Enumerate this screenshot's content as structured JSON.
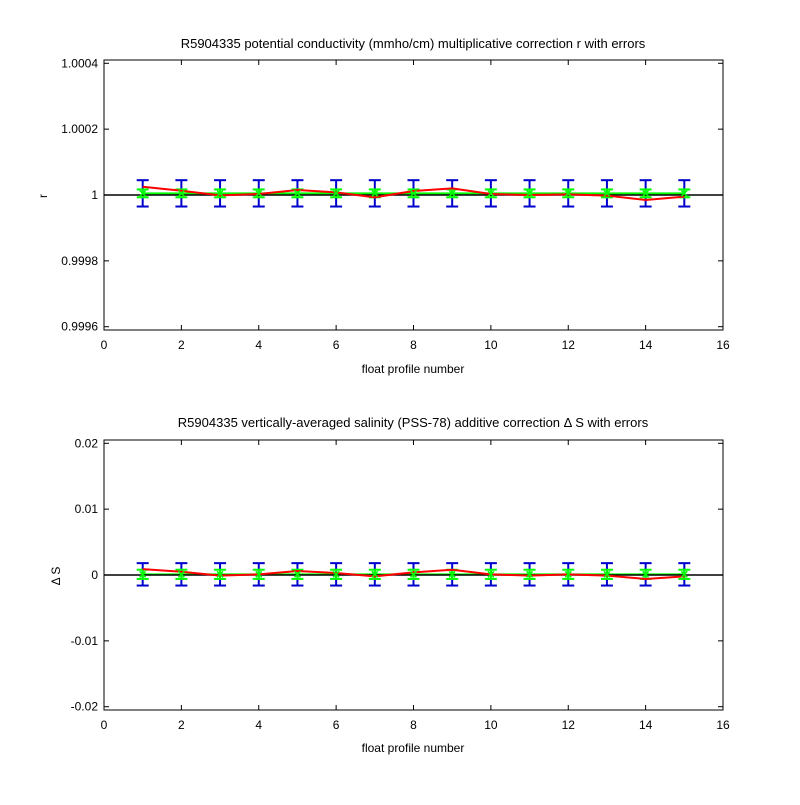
{
  "colors": {
    "axis": "#000000",
    "background": "#ffffff",
    "correction": "#ff0000",
    "zero_line": "#000000",
    "mean_line": "#00ff00",
    "error_bars": "#0000cc",
    "markers": "#00ff00"
  },
  "chart_data": [
    {
      "type": "line",
      "title": "R5904335 potential conductivity (mmho/cm) multiplicative correction r with errors",
      "xlabel": "float profile number",
      "ylabel": "r",
      "xlim": [
        0,
        16
      ],
      "ylim": [
        0.99959,
        1.00041
      ],
      "x_ticks": [
        0,
        2,
        4,
        6,
        8,
        10,
        12,
        14,
        16
      ],
      "x_tick_labels": [
        "0",
        "2",
        "4",
        "6",
        "8",
        "10",
        "12",
        "14",
        "16"
      ],
      "y_ticks": [
        0.9996,
        0.9998,
        1.0,
        1.0002,
        1.0004
      ],
      "y_tick_labels": [
        "0.9996",
        "0.9998",
        "1",
        "1.0002",
        "1.0004"
      ],
      "reference_line": 1.0,
      "x": [
        1,
        2,
        3,
        4,
        5,
        6,
        7,
        8,
        9,
        10,
        11,
        12,
        13,
        14,
        15
      ],
      "series": [
        {
          "role": "correction",
          "values": [
            1.000025,
            1.000013,
            0.999999,
            1.000003,
            1.000015,
            1.000008,
            0.999993,
            1.000012,
            1.00002,
            1.000003,
            1.0,
            1.000002,
            0.999998,
            0.999985,
            0.999995
          ]
        },
        {
          "role": "mean",
          "values": [
            1.000005,
            1.000005,
            1.000005,
            1.000005,
            1.000005,
            1.000005,
            1.000005,
            1.000005,
            1.000005,
            1.000005,
            1.000005,
            1.000005,
            1.000005,
            1.000005,
            1.000005
          ]
        }
      ],
      "errors": {
        "center": [
          1.000005,
          1.000005,
          1.000005,
          1.000005,
          1.000005,
          1.000005,
          1.000005,
          1.000005,
          1.000005,
          1.000005,
          1.000005,
          1.000005,
          1.000005,
          1.000005,
          1.000005
        ],
        "outer": 4e-05,
        "inner": 1.2e-05
      },
      "grid": false,
      "legend": "none"
    },
    {
      "type": "line",
      "title": "R5904335 vertically-averaged salinity (PSS-78) additive correction Δ S with errors",
      "xlabel": "float profile number",
      "ylabel": "Δ S",
      "xlim": [
        0,
        16
      ],
      "ylim": [
        -0.0205,
        0.0205
      ],
      "x_ticks": [
        0,
        2,
        4,
        6,
        8,
        10,
        12,
        14,
        16
      ],
      "x_tick_labels": [
        "0",
        "2",
        "4",
        "6",
        "8",
        "10",
        "12",
        "14",
        "16"
      ],
      "y_ticks": [
        -0.02,
        -0.01,
        0,
        0.01,
        0.02
      ],
      "y_tick_labels": [
        "-0.02",
        "-0.01",
        "0",
        "0.01",
        "0.02"
      ],
      "reference_line": 0,
      "x": [
        1,
        2,
        3,
        4,
        5,
        6,
        7,
        8,
        9,
        10,
        11,
        12,
        13,
        14,
        15
      ],
      "series": [
        {
          "role": "correction",
          "values": [
            0.0009,
            0.0005,
            -0.0001,
            0.0001,
            0.0006,
            0.0003,
            -0.0002,
            0.0004,
            0.0008,
            0.0001,
            -0.0001,
            0.0001,
            -0.0001,
            -0.0006,
            -0.0002
          ]
        },
        {
          "role": "mean",
          "values": [
            0.0001,
            0.0001,
            0.0001,
            0.0001,
            0.0001,
            0.0001,
            0.0001,
            0.0001,
            0.0001,
            0.0001,
            0.0001,
            0.0001,
            0.0001,
            0.0001,
            0.0001
          ]
        }
      ],
      "errors": {
        "center": [
          0.0001,
          0.0001,
          0.0001,
          0.0001,
          0.0001,
          0.0001,
          0.0001,
          0.0001,
          0.0001,
          0.0001,
          0.0001,
          0.0001,
          0.0001,
          0.0001,
          0.0001
        ],
        "outer": 0.0017,
        "inner": 0.0007
      },
      "grid": false,
      "legend": "none"
    }
  ]
}
